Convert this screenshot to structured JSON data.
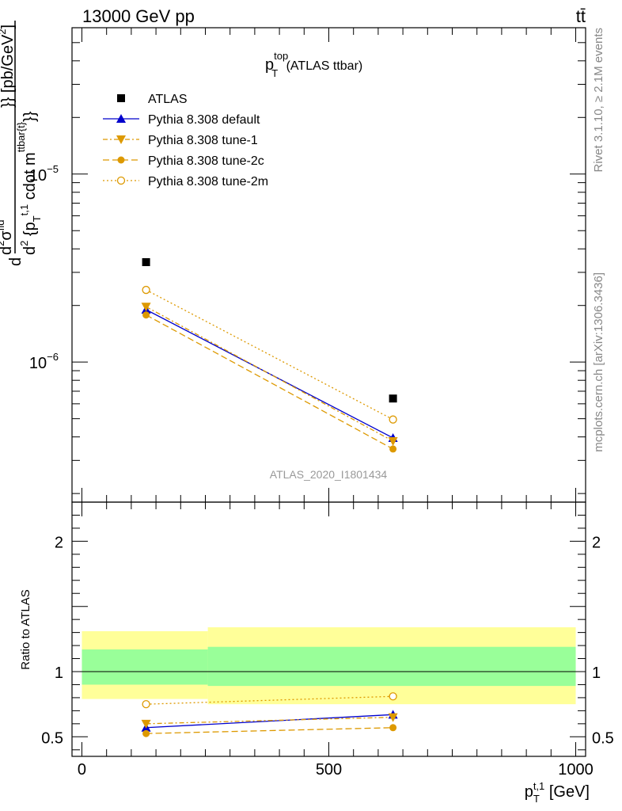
{
  "header": {
    "left": "13000 GeV pp",
    "right": "tt̄"
  },
  "side_labels": {
    "rivet": "Rivet 3.1.10, ≥ 2.1M events",
    "source": "mcplots.cern.ch [arXiv:1306.3436]"
  },
  "chart_data": [
    {
      "type": "scatter",
      "panel": "main",
      "title": {
        "main": "p",
        "sup": "top",
        "sub": "T",
        "suffix": " (ATLAS ttbar)"
      },
      "ylabel": "d²σ^{fid} / d² {p_T^{t,1} cdot m^{ttbar{t}}} [pb/GeV²]",
      "xlabel": "p_T^{t,1} [GeV]",
      "yscale": "log",
      "ylim": [
        1.8e-07,
        6e-05
      ],
      "xlim": [
        -20,
        1020
      ],
      "y_ticks": [
        {
          "value": 1e-06,
          "base": "10",
          "exp": "−6"
        },
        {
          "value": 1e-05,
          "base": "10",
          "exp": "−5"
        }
      ],
      "watermark": "ATLAS_2020_I1801434",
      "x": [
        130,
        630
      ],
      "series": [
        {
          "name": "ATLAS",
          "color": "#000000",
          "marker": "square",
          "line": "none",
          "values": [
            3.4e-06,
            6.4e-07
          ]
        },
        {
          "name": "Pythia 8.308 default",
          "color": "#0000cc",
          "marker": "triangle-up",
          "line": "solid",
          "values": [
            1.9e-06,
            3.95e-07
          ]
        },
        {
          "name": "Pythia 8.308 tune-1",
          "color": "#dd9900",
          "marker": "triangle-down",
          "line": "dashdot",
          "values": [
            1.97e-06,
            3.8e-07
          ]
        },
        {
          "name": "Pythia 8.308 tune-2c",
          "color": "#dd9900",
          "marker": "circle",
          "line": "dashed",
          "values": [
            1.78e-06,
            3.45e-07
          ]
        },
        {
          "name": "Pythia 8.308 tune-2m",
          "color": "#dd9900",
          "marker": "circle-open",
          "line": "dotted",
          "values": [
            2.42e-06,
            4.95e-07
          ]
        }
      ],
      "legend_position": "top-left"
    },
    {
      "type": "scatter",
      "panel": "ratio",
      "ylabel": "Ratio to ATLAS",
      "xlabel": "p_T^{t,1} [GeV]",
      "ylim": [
        0.35,
        2.3
      ],
      "xlim": [
        -20,
        1020
      ],
      "y_tick_labels": [
        {
          "value": 0.5,
          "label": "0.5"
        },
        {
          "value": 1,
          "label": "1"
        },
        {
          "value": 2,
          "label": "2"
        }
      ],
      "x_tick_labels": [
        {
          "value": 0,
          "label": "0"
        },
        {
          "value": 500,
          "label": "500"
        },
        {
          "value": 1000,
          "label": "1000"
        }
      ],
      "x": [
        130,
        630
      ],
      "bands": [
        {
          "x0": 0,
          "x1": 255,
          "yellow": [
            0.79,
            1.31
          ],
          "green": [
            0.9,
            1.17
          ]
        },
        {
          "x0": 255,
          "x1": 1000,
          "yellow": [
            0.75,
            1.34
          ],
          "green": [
            0.89,
            1.19
          ]
        }
      ],
      "series": [
        {
          "name": "Pythia 8.308 default",
          "values": [
            0.57,
            0.67
          ],
          "errors": [
            0.01,
            0.02
          ]
        },
        {
          "name": "Pythia 8.308 tune-1",
          "values": [
            0.6,
            0.65
          ],
          "errors": [
            0.01,
            0.02
          ]
        },
        {
          "name": "Pythia 8.308 tune-2c",
          "values": [
            0.525,
            0.57
          ],
          "errors": [
            0.01,
            0.02
          ]
        },
        {
          "name": "Pythia 8.308 tune-2m",
          "values": [
            0.75,
            0.81
          ],
          "errors": [
            0.01,
            0.02
          ]
        }
      ]
    }
  ]
}
